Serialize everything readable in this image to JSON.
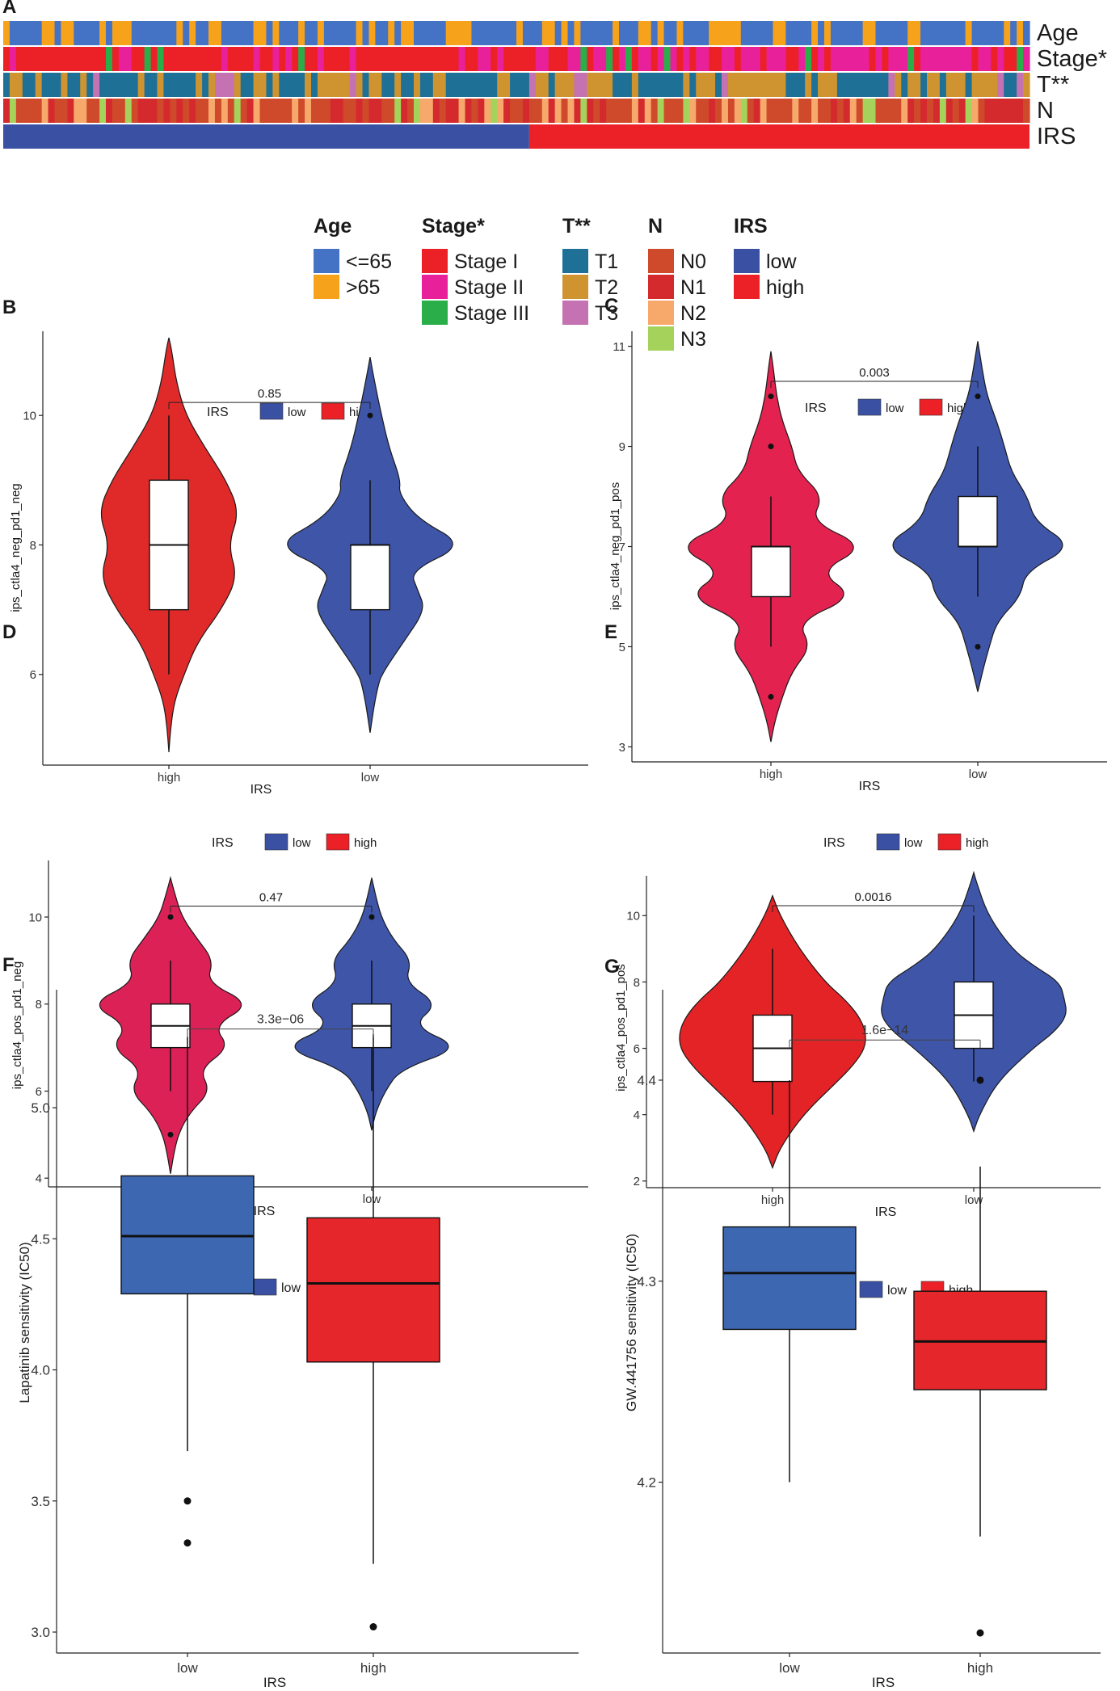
{
  "panel_labels": [
    "A",
    "B",
    "C",
    "D",
    "E",
    "F",
    "G"
  ],
  "colors": {
    "age_le65": "#4472c4",
    "age_gt65": "#f7a21b",
    "stage_i": "#ec2027",
    "stage_ii": "#e8219b",
    "stage_iii": "#2aae4a",
    "t1": "#1f7097",
    "t2": "#cf9430",
    "t3": "#c472b2",
    "n0": "#cf4a2a",
    "n1": "#d42a2e",
    "n2": "#f7a86b",
    "n3": "#a5d25a",
    "irs_low": "#3a50a3",
    "irs_high": "#ec2027",
    "violin_low": "#3e55a8",
    "violin_high_b": "#e02a2a",
    "violin_high_c": "#e3224f",
    "violin_high_d": "#dc2157",
    "violin_high_e": "#e32326",
    "box_low": "#3d67b1",
    "box_high": "#e5262b"
  },
  "chart_data": [
    {
      "panel": "A",
      "type": "heatmap",
      "n_samples": 160,
      "rows": [
        {
          "label": "Age",
          "key": "age",
          "levels": [
            "<=65",
            ">65"
          ],
          "colors": [
            "#4472c4",
            "#f7a21b"
          ]
        },
        {
          "label": "Stage*",
          "key": "stage",
          "levels": [
            "Stage I",
            "Stage II",
            "Stage III"
          ],
          "colors": [
            "#ec2027",
            "#e8219b",
            "#2aae4a"
          ]
        },
        {
          "label": "T**",
          "key": "t",
          "levels": [
            "T1",
            "T2",
            "T3"
          ],
          "colors": [
            "#1f7097",
            "#cf9430",
            "#c472b2"
          ]
        },
        {
          "label": "N",
          "key": "n",
          "levels": [
            "N0",
            "N1",
            "N2",
            "N3"
          ],
          "colors": [
            "#cf4a2a",
            "#d42a2e",
            "#f7a86b",
            "#a5d25a"
          ]
        },
        {
          "label": "IRS",
          "key": "irs",
          "levels": [
            "low",
            "high"
          ],
          "colors": [
            "#3a50a3",
            "#ec2027"
          ]
        }
      ],
      "irs_low_fraction": 0.51,
      "legend": [
        {
          "title": "Age",
          "items": [
            "<=65",
            ">65"
          ]
        },
        {
          "title": "Stage*",
          "items": [
            "Stage I",
            "Stage II",
            "Stage III"
          ]
        },
        {
          "title": "T**",
          "items": [
            "T1",
            "T2",
            "T3"
          ]
        },
        {
          "title": "N",
          "items": [
            "N0",
            "N1",
            "N2",
            "N3"
          ]
        },
        {
          "title": "IRS",
          "items": [
            "low",
            "high"
          ]
        }
      ]
    },
    {
      "panel": "B",
      "type": "violin",
      "legend_title": "IRS",
      "legend_items": [
        "low",
        "high"
      ],
      "xlabel": "IRS",
      "ylabel": "ips_ctla4_neg_pd1_neg",
      "ylim": [
        4.6,
        11.3
      ],
      "yticks": [
        6,
        8,
        10
      ],
      "p_label": "0.85",
      "p_y": 10.2,
      "groups": [
        {
          "name": "high",
          "color": "#e02a2a",
          "min": 4.8,
          "max": 11.2,
          "profile": [
            [
              4.8,
              0
            ],
            [
              5.2,
              0.02
            ],
            [
              5.6,
              0.06
            ],
            [
              6.0,
              0.16
            ],
            [
              6.5,
              0.3
            ],
            [
              7.0,
              0.55
            ],
            [
              7.5,
              0.72
            ],
            [
              8.0,
              0.62
            ],
            [
              8.5,
              0.74
            ],
            [
              9.0,
              0.6
            ],
            [
              9.5,
              0.38
            ],
            [
              10.0,
              0.18
            ],
            [
              10.5,
              0.08
            ],
            [
              11.0,
              0.03
            ],
            [
              11.2,
              0
            ]
          ],
          "q1": 7,
          "median": 8,
          "q3": 9,
          "whisker_low": 6,
          "whisker_high": 10,
          "outliers": []
        },
        {
          "name": "low",
          "color": "#3e55a8",
          "min": 5.1,
          "max": 10.9,
          "profile": [
            [
              5.1,
              0
            ],
            [
              5.5,
              0.04
            ],
            [
              5.8,
              0.08
            ],
            [
              6.0,
              0.12
            ],
            [
              6.5,
              0.35
            ],
            [
              7.0,
              0.58
            ],
            [
              7.3,
              0.5
            ],
            [
              7.6,
              0.42
            ],
            [
              8.0,
              1.0
            ],
            [
              8.4,
              0.5
            ],
            [
              8.8,
              0.3
            ],
            [
              9.0,
              0.32
            ],
            [
              9.5,
              0.2
            ],
            [
              10.0,
              0.12
            ],
            [
              10.5,
              0.05
            ],
            [
              10.9,
              0
            ]
          ],
          "q1": 7,
          "median": 8,
          "q3": 8,
          "whisker_low": 6,
          "whisker_high": 9,
          "outliers": [
            10
          ]
        }
      ]
    },
    {
      "panel": "C",
      "type": "violin",
      "legend_title": "IRS",
      "legend_items": [
        "low",
        "high"
      ],
      "xlabel": "IRS",
      "ylabel": "ips_ctla4_neg_pd1_pos",
      "ylim": [
        2.7,
        11.3
      ],
      "yticks": [
        3,
        5,
        7,
        9,
        11
      ],
      "p_label": "0.003",
      "p_y": 10.3,
      "groups": [
        {
          "name": "high",
          "color": "#e3224f",
          "min": 3.1,
          "max": 10.9,
          "profile": [
            [
              3.1,
              0
            ],
            [
              3.5,
              0.04
            ],
            [
              4.0,
              0.12
            ],
            [
              4.5,
              0.22
            ],
            [
              5.0,
              0.42
            ],
            [
              5.5,
              0.28
            ],
            [
              6.0,
              0.88
            ],
            [
              6.5,
              0.5
            ],
            [
              7.0,
              1.0
            ],
            [
              7.5,
              0.42
            ],
            [
              8.0,
              0.55
            ],
            [
              8.5,
              0.28
            ],
            [
              9.0,
              0.22
            ],
            [
              9.5,
              0.12
            ],
            [
              10.0,
              0.06
            ],
            [
              10.5,
              0.03
            ],
            [
              10.9,
              0
            ]
          ],
          "q1": 6,
          "median": 7,
          "q3": 7,
          "whisker_low": 5,
          "whisker_high": 8,
          "outliers": [
            4,
            9,
            10
          ]
        },
        {
          "name": "low",
          "color": "#3e55a8",
          "min": 4.1,
          "max": 11.1,
          "profile": [
            [
              4.1,
              0
            ],
            [
              4.5,
              0.05
            ],
            [
              5.0,
              0.12
            ],
            [
              5.5,
              0.2
            ],
            [
              6.0,
              0.45
            ],
            [
              6.5,
              0.5
            ],
            [
              7.0,
              1.0
            ],
            [
              7.5,
              0.6
            ],
            [
              8.0,
              0.52
            ],
            [
              8.5,
              0.35
            ],
            [
              9.0,
              0.28
            ],
            [
              9.5,
              0.2
            ],
            [
              10.0,
              0.1
            ],
            [
              10.5,
              0.05
            ],
            [
              11.1,
              0
            ]
          ],
          "q1": 7,
          "median": 7,
          "q3": 8,
          "whisker_low": 6,
          "whisker_high": 9,
          "outliers": [
            5,
            10
          ]
        }
      ]
    },
    {
      "panel": "D",
      "type": "violin",
      "legend_title": "IRS",
      "legend_items": [
        "low",
        "high"
      ],
      "xlabel": "IRS",
      "ylabel": "ips_ctla4_pos_pd1_neg",
      "ylim": [
        3.8,
        11.3
      ],
      "yticks": [
        4,
        6,
        8,
        10
      ],
      "p_label": "0.47",
      "p_y": 10.25,
      "groups": [
        {
          "name": "high",
          "color": "#dc2157",
          "min": 4.1,
          "max": 10.9,
          "profile": [
            [
              4.1,
              0
            ],
            [
              4.5,
              0.03
            ],
            [
              5.0,
              0.08
            ],
            [
              5.5,
              0.2
            ],
            [
              6.0,
              0.42
            ],
            [
              6.5,
              0.3
            ],
            [
              7.0,
              0.62
            ],
            [
              7.5,
              0.45
            ],
            [
              8.0,
              0.85
            ],
            [
              8.5,
              0.38
            ],
            [
              9.0,
              0.45
            ],
            [
              9.5,
              0.28
            ],
            [
              10.0,
              0.12
            ],
            [
              10.5,
              0.05
            ],
            [
              10.9,
              0
            ]
          ],
          "q1": 7,
          "median": 7.5,
          "q3": 8,
          "whisker_low": 6,
          "whisker_high": 9,
          "outliers": [
            5,
            10
          ]
        },
        {
          "name": "low",
          "color": "#3e55a8",
          "min": 5.1,
          "max": 10.9,
          "profile": [
            [
              5.1,
              0
            ],
            [
              5.5,
              0.04
            ],
            [
              6.0,
              0.14
            ],
            [
              6.5,
              0.3
            ],
            [
              7.0,
              0.95
            ],
            [
              7.5,
              0.42
            ],
            [
              8.0,
              0.7
            ],
            [
              8.5,
              0.35
            ],
            [
              9.0,
              0.42
            ],
            [
              9.5,
              0.22
            ],
            [
              10.0,
              0.1
            ],
            [
              10.5,
              0.04
            ],
            [
              10.9,
              0
            ]
          ],
          "q1": 7,
          "median": 7.5,
          "q3": 8,
          "whisker_low": 6,
          "whisker_high": 9,
          "outliers": [
            10
          ]
        }
      ]
    },
    {
      "panel": "E",
      "type": "violin",
      "legend_title": "IRS",
      "legend_items": [
        "low",
        "high"
      ],
      "xlabel": "IRS",
      "ylabel": "ips_ctla4_pos_pd1_pos",
      "ylim": [
        1.8,
        11.2
      ],
      "yticks": [
        2,
        4,
        6,
        8,
        10
      ],
      "p_label": "0.0016",
      "p_y": 10.3,
      "groups": [
        {
          "name": "high",
          "color": "#e32326",
          "min": 2.4,
          "max": 10.6,
          "profile": [
            [
              2.4,
              0
            ],
            [
              3.0,
              0.08
            ],
            [
              4.0,
              0.32
            ],
            [
              5.0,
              0.68
            ],
            [
              5.5,
              0.85
            ],
            [
              6.0,
              0.97
            ],
            [
              6.5,
              0.98
            ],
            [
              7.0,
              0.9
            ],
            [
              7.5,
              0.75
            ],
            [
              8.0,
              0.55
            ],
            [
              9.0,
              0.28
            ],
            [
              10.0,
              0.08
            ],
            [
              10.6,
              0
            ]
          ],
          "q1": 5,
          "median": 6,
          "q3": 7,
          "whisker_low": 4,
          "whisker_high": 9,
          "outliers": []
        },
        {
          "name": "low",
          "color": "#3e55a8",
          "min": 3.5,
          "max": 11.3,
          "profile": [
            [
              3.5,
              0
            ],
            [
              4.0,
              0.06
            ],
            [
              5.0,
              0.25
            ],
            [
              6.0,
              0.62
            ],
            [
              6.5,
              0.85
            ],
            [
              7.0,
              0.98
            ],
            [
              7.5,
              0.95
            ],
            [
              8.0,
              0.9
            ],
            [
              8.5,
              0.62
            ],
            [
              9.0,
              0.4
            ],
            [
              10.0,
              0.15
            ],
            [
              11.0,
              0.03
            ],
            [
              11.3,
              0
            ]
          ],
          "q1": 6,
          "median": 7,
          "q3": 8,
          "whisker_low": 5,
          "whisker_high": 10,
          "outliers": []
        }
      ]
    },
    {
      "panel": "F",
      "type": "box",
      "legend_title": "IRS",
      "legend_items": [
        "low",
        "high"
      ],
      "xlabel": "IRS",
      "ylabel": "Lapatinib sensitivity (IC50)",
      "ylim": [
        2.92,
        5.45
      ],
      "yticks": [
        3.0,
        3.5,
        4.0,
        4.5,
        5.0
      ],
      "tick_labels": [
        "3.0",
        "3.5",
        "4.0",
        "4.5",
        "5.0"
      ],
      "p_label": "3.3e−06",
      "p_y": 5.3,
      "groups": [
        {
          "name": "low",
          "color": "#3d67b1",
          "q1": 4.29,
          "median": 4.51,
          "q3": 4.74,
          "whisker_low": 3.69,
          "whisker_high": 5.27,
          "outliers": [
            3.34,
            3.5
          ]
        },
        {
          "name": "high",
          "color": "#e5262b",
          "q1": 4.03,
          "median": 4.33,
          "q3": 4.58,
          "whisker_low": 3.26,
          "whisker_high": 5.28,
          "outliers": [
            3.02
          ]
        }
      ]
    },
    {
      "panel": "G",
      "type": "box",
      "legend_title": "IRS",
      "legend_items": [
        "low",
        "high"
      ],
      "xlabel": "IRS",
      "ylabel": "GW.441756 sensitivity (IC50)",
      "ylim": [
        4.115,
        4.445
      ],
      "yticks": [
        4.2,
        4.3,
        4.4
      ],
      "tick_labels": [
        "4.2",
        "4.3",
        "4.4"
      ],
      "p_label": "1.6e−14",
      "p_y": 4.42,
      "groups": [
        {
          "name": "low",
          "color": "#3d67b1",
          "q1": 4.276,
          "median": 4.304,
          "q3": 4.327,
          "whisker_low": 4.2,
          "whisker_high": 4.4,
          "outliers": []
        },
        {
          "name": "high",
          "color": "#e5262b",
          "q1": 4.246,
          "median": 4.27,
          "q3": 4.295,
          "whisker_low": 4.173,
          "whisker_high": 4.357,
          "outliers": [
            4.125,
            4.4
          ]
        }
      ]
    }
  ]
}
